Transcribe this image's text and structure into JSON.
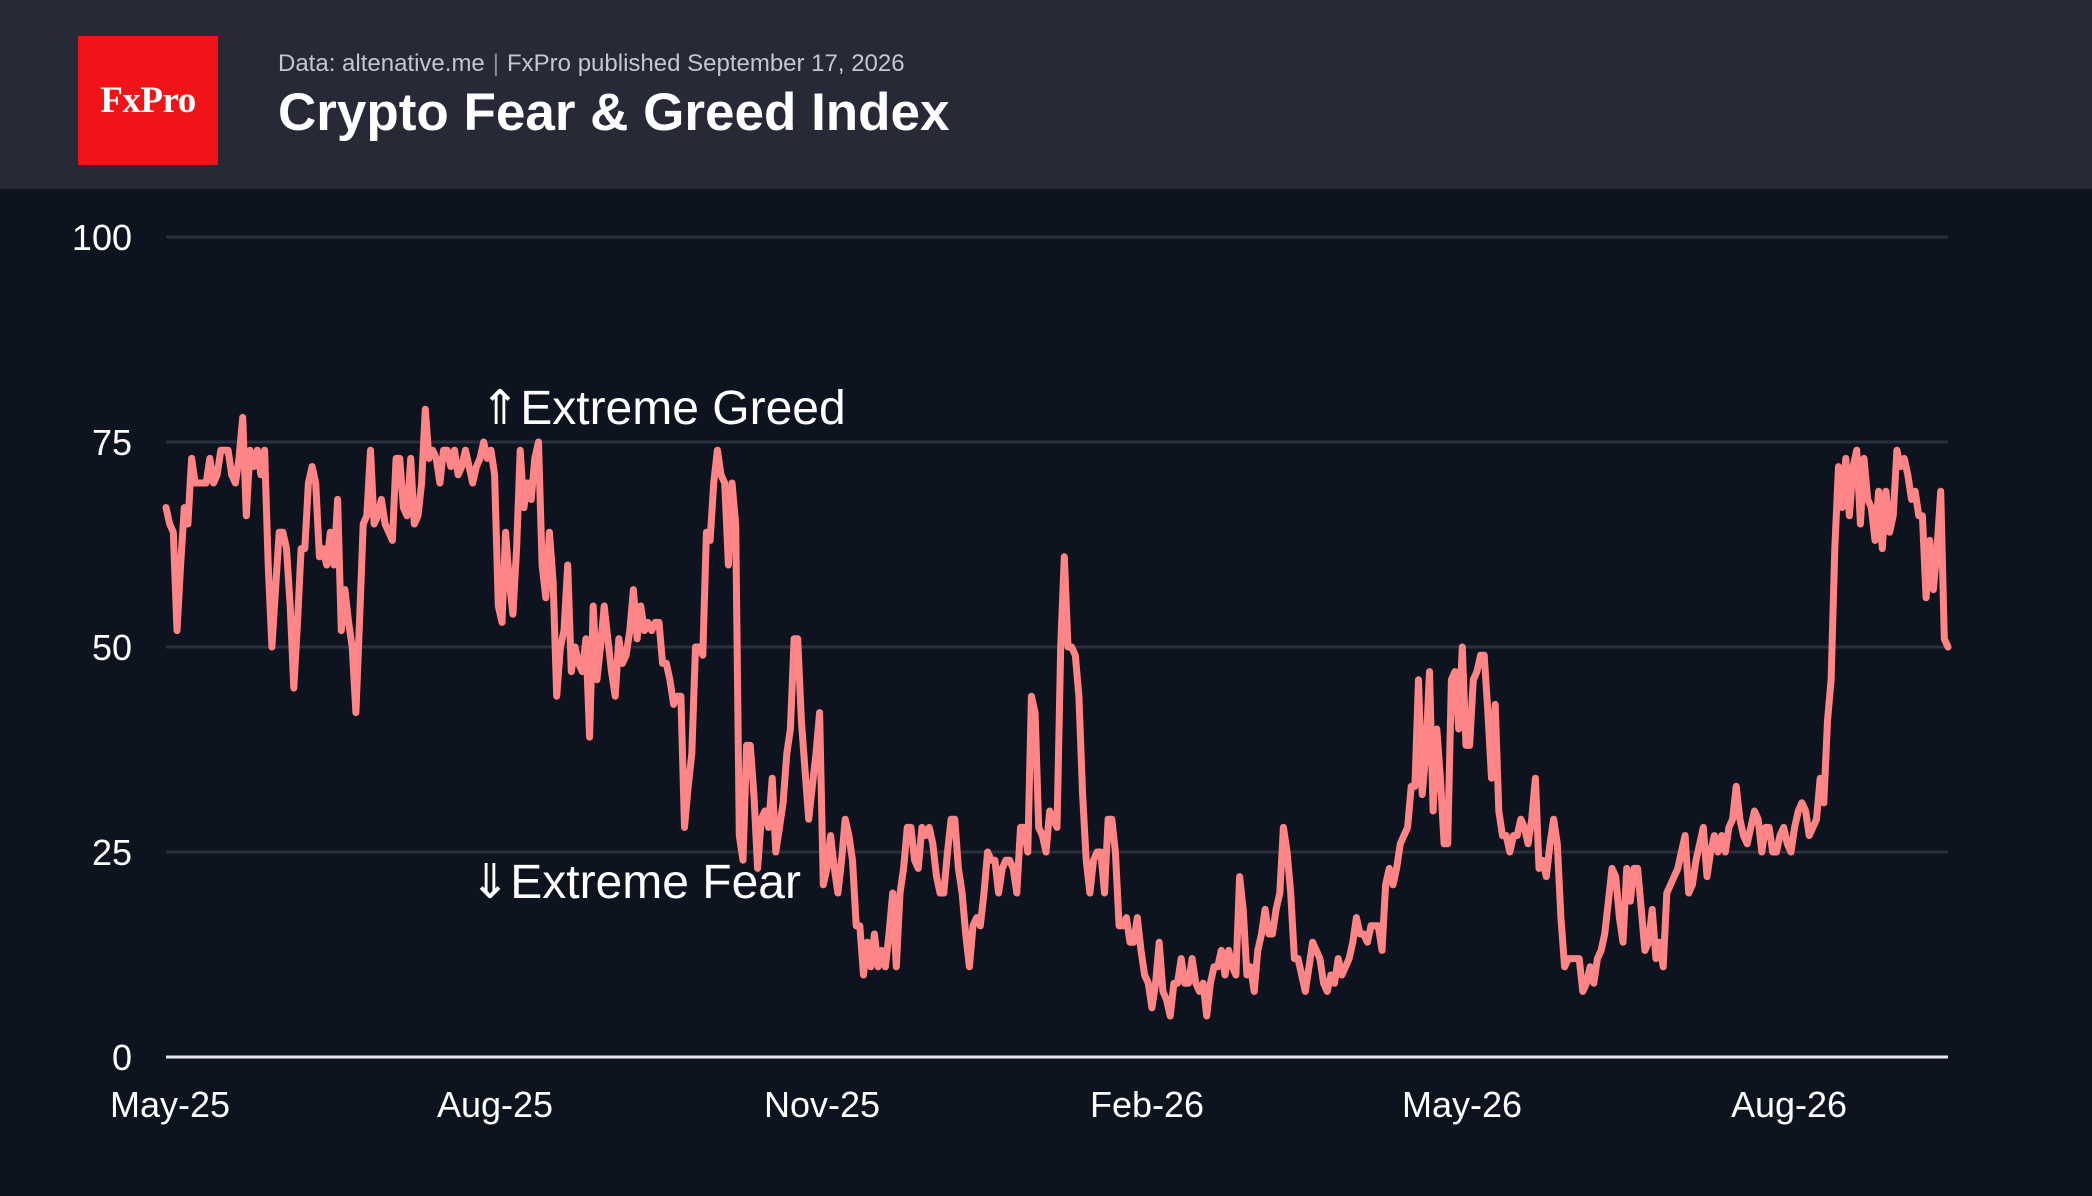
{
  "header": {
    "logo_text": "FxPro",
    "data_source": "Data: altenative.me",
    "published": "FxPro published September 17, 2026",
    "title": "Crypto Fear & Greed Index"
  },
  "colors": {
    "header_bg": "#272a36",
    "chart_bg": "#0e1320",
    "logo_bg": "#f01419",
    "line": "#ff8586",
    "grid": "#2a2f3c"
  },
  "chart_data": {
    "type": "line",
    "title": "Crypto Fear & Greed Index",
    "xlabel": "",
    "ylabel": "",
    "ylim": [
      0,
      100
    ],
    "yticks": [
      0,
      25,
      50,
      75,
      100
    ],
    "xticks": [
      "May-25",
      "Aug-25",
      "Nov-25",
      "Feb-26",
      "May-26",
      "Aug-26"
    ],
    "grid": true,
    "annotations": [
      {
        "text": "⇑Extreme Greed",
        "at_value": 75
      },
      {
        "text": "⇓Extreme Fear",
        "at_value": 25
      }
    ],
    "series": [
      {
        "values": [
          67,
          65,
          64,
          52,
          60,
          67,
          65,
          73,
          70,
          70,
          70,
          70,
          73,
          70,
          71,
          74,
          74,
          74,
          71,
          70,
          73,
          78,
          66,
          74,
          72,
          74,
          71,
          74,
          60,
          50,
          57,
          64,
          64,
          62,
          55,
          45,
          53,
          62,
          62,
          70,
          72,
          70,
          61,
          62,
          60,
          64,
          60,
          68,
          52,
          57,
          53,
          50,
          42,
          53,
          65,
          66,
          74,
          65,
          66,
          68,
          65,
          64,
          63,
          73,
          73,
          67,
          66,
          73,
          65,
          66,
          70,
          79,
          73,
          74,
          73,
          70,
          74,
          74,
          72,
          74,
          71,
          72,
          74,
          72,
          70,
          72,
          73,
          75,
          73,
          74,
          71,
          55,
          53,
          64,
          58,
          54,
          62,
          74,
          67,
          70,
          68,
          73,
          75,
          60,
          56,
          64,
          58,
          44,
          50,
          52,
          60,
          47,
          50,
          48,
          47,
          51,
          39,
          55,
          46,
          50,
          55,
          51,
          47,
          44,
          51,
          48,
          49,
          52,
          57,
          51,
          55,
          52,
          53,
          52,
          53,
          53,
          48,
          48,
          46,
          43,
          44,
          44,
          28,
          33,
          37,
          50,
          50,
          49,
          64,
          63,
          70,
          74,
          71,
          70,
          60,
          70,
          65,
          27,
          24,
          38,
          38,
          32,
          23,
          29,
          30,
          28,
          34,
          25,
          28,
          31,
          37,
          40,
          51,
          51,
          41,
          35,
          29,
          33,
          37,
          42,
          21,
          23,
          27,
          23,
          20,
          24,
          29,
          27,
          24,
          16,
          16,
          10,
          14,
          11,
          15,
          11,
          13,
          11,
          15,
          20,
          11,
          20,
          23,
          28,
          28,
          24,
          23,
          28,
          27,
          28,
          26,
          22,
          20,
          20,
          25,
          29,
          29,
          23,
          20,
          15,
          11,
          16,
          17,
          16,
          20,
          25,
          24,
          24,
          20,
          23,
          24,
          24,
          23,
          20,
          28,
          28,
          25,
          44,
          42,
          28,
          27,
          25,
          30,
          29,
          28,
          50,
          61,
          50,
          50,
          49,
          44,
          32,
          24,
          20,
          24,
          25,
          25,
          20,
          29,
          29,
          25,
          16,
          16,
          17,
          14,
          14,
          17,
          13,
          10,
          9,
          6,
          9,
          14,
          8,
          7,
          5,
          9,
          9,
          12,
          9,
          9,
          12,
          9,
          8,
          9,
          5,
          9,
          11,
          11,
          13,
          10,
          13,
          11,
          10,
          22,
          18,
          10,
          11,
          8,
          13,
          15,
          18,
          15,
          15,
          18,
          20,
          28,
          25,
          20,
          12,
          12,
          10,
          8,
          11,
          14,
          13,
          12,
          9,
          8,
          10,
          9,
          12,
          10,
          11,
          12,
          14,
          17,
          15,
          15,
          14,
          16,
          16,
          16,
          13,
          21,
          23,
          21,
          23,
          26,
          27,
          28,
          33,
          33,
          46,
          32,
          37,
          47,
          30,
          40,
          34,
          26,
          26,
          46,
          47,
          40,
          50,
          38,
          38,
          46,
          47,
          49,
          49,
          42,
          34,
          43,
          30,
          27,
          27,
          25,
          27,
          27,
          29,
          28,
          26,
          29,
          34,
          23,
          24,
          22,
          26,
          29,
          26,
          17,
          11,
          12,
          12,
          12,
          12,
          8,
          9,
          11,
          9,
          12,
          13,
          15,
          19,
          23,
          22,
          17,
          14,
          23,
          19,
          23,
          23,
          18,
          13,
          14,
          18,
          12,
          14,
          11,
          20,
          21,
          22,
          23,
          25,
          27,
          20,
          21,
          24,
          26,
          28,
          22,
          25,
          27,
          25,
          27,
          25,
          28,
          29,
          33,
          29,
          27,
          26,
          28,
          30,
          29,
          25,
          28,
          28,
          25,
          25,
          27,
          28,
          26,
          25,
          28,
          30,
          31,
          30,
          27,
          28,
          29,
          34,
          31,
          41,
          46,
          62,
          72,
          67,
          73,
          66,
          72,
          74,
          65,
          73,
          68,
          67,
          63,
          69,
          62,
          69,
          64,
          66,
          74,
          72,
          73,
          71,
          68,
          69,
          66,
          66,
          56,
          63,
          57,
          62,
          69,
          51,
          50
        ]
      }
    ]
  }
}
